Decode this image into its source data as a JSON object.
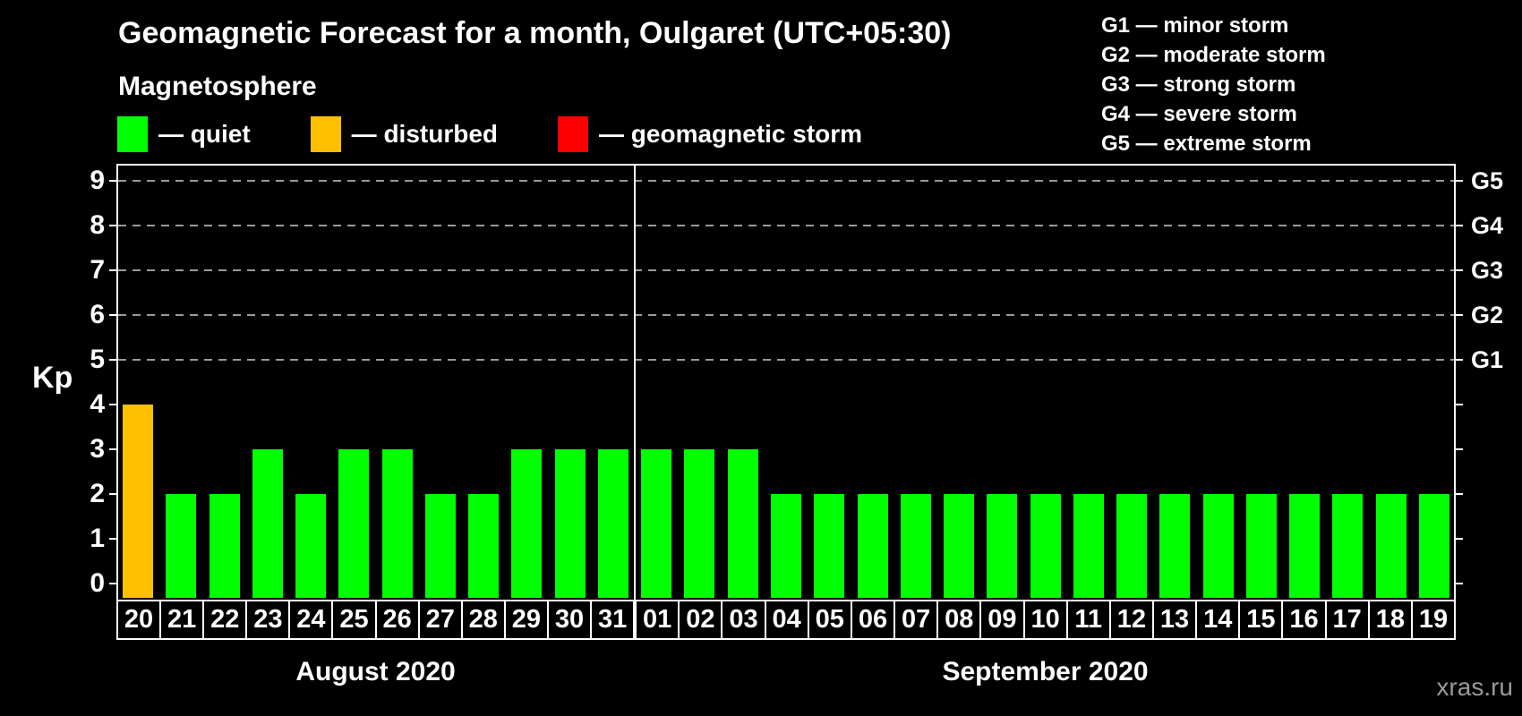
{
  "header": {
    "title": "Geomagnetic Forecast for a month, Oulgaret (UTC+05:30)",
    "subtitle": "Magnetosphere"
  },
  "legend": {
    "items": [
      {
        "name": "quiet",
        "label": "— quiet",
        "color": "#00FF00"
      },
      {
        "name": "disturbed",
        "label": "— disturbed",
        "color": "#FFC000"
      },
      {
        "name": "geomagnetic-storm",
        "label": "— geomagnetic storm",
        "color": "#FF0000"
      }
    ]
  },
  "g_scale_legend": {
    "items": [
      "G1 — minor storm",
      "G2 — moderate storm",
      "G3 — strong storm",
      "G4 — severe storm",
      "G5 — extreme storm"
    ]
  },
  "watermark": "xras.ru",
  "chart_data": {
    "type": "bar",
    "title": "Geomagnetic Forecast for a month, Oulgaret (UTC+05:30)",
    "ylabel": "Kp",
    "ylim": [
      0,
      9.4
    ],
    "yticks": [
      0,
      1,
      2,
      3,
      4,
      5,
      6,
      7,
      8,
      9
    ],
    "grid": "horizontal dashed lines at Kp 5 to 9",
    "legend_position": "top",
    "right_axis": {
      "labels": [
        "G1",
        "G2",
        "G3",
        "G4",
        "G5"
      ],
      "at_kp": [
        5,
        6,
        7,
        8,
        9
      ]
    },
    "colors": {
      "quiet": "#00FF00",
      "disturbed": "#FFC000",
      "storm": "#FF0000"
    },
    "months": [
      {
        "label": "August 2020",
        "days": [
          "20",
          "21",
          "22",
          "23",
          "24",
          "25",
          "26",
          "27",
          "28",
          "29",
          "30",
          "31"
        ],
        "values": [
          4,
          2,
          2,
          3,
          2,
          3,
          3,
          2,
          2,
          3,
          3,
          3
        ],
        "status": [
          "disturbed",
          "quiet",
          "quiet",
          "quiet",
          "quiet",
          "quiet",
          "quiet",
          "quiet",
          "quiet",
          "quiet",
          "quiet",
          "quiet"
        ]
      },
      {
        "label": "September 2020",
        "days": [
          "01",
          "02",
          "03",
          "04",
          "05",
          "06",
          "07",
          "08",
          "09",
          "10",
          "11",
          "12",
          "13",
          "14",
          "15",
          "16",
          "17",
          "18",
          "19"
        ],
        "values": [
          3,
          3,
          3,
          2,
          2,
          2,
          2,
          2,
          2,
          2,
          2,
          2,
          2,
          2,
          2,
          2,
          2,
          2,
          2
        ],
        "status": [
          "quiet",
          "quiet",
          "quiet",
          "quiet",
          "quiet",
          "quiet",
          "quiet",
          "quiet",
          "quiet",
          "quiet",
          "quiet",
          "quiet",
          "quiet",
          "quiet",
          "quiet",
          "quiet",
          "quiet",
          "quiet",
          "quiet"
        ]
      }
    ]
  }
}
